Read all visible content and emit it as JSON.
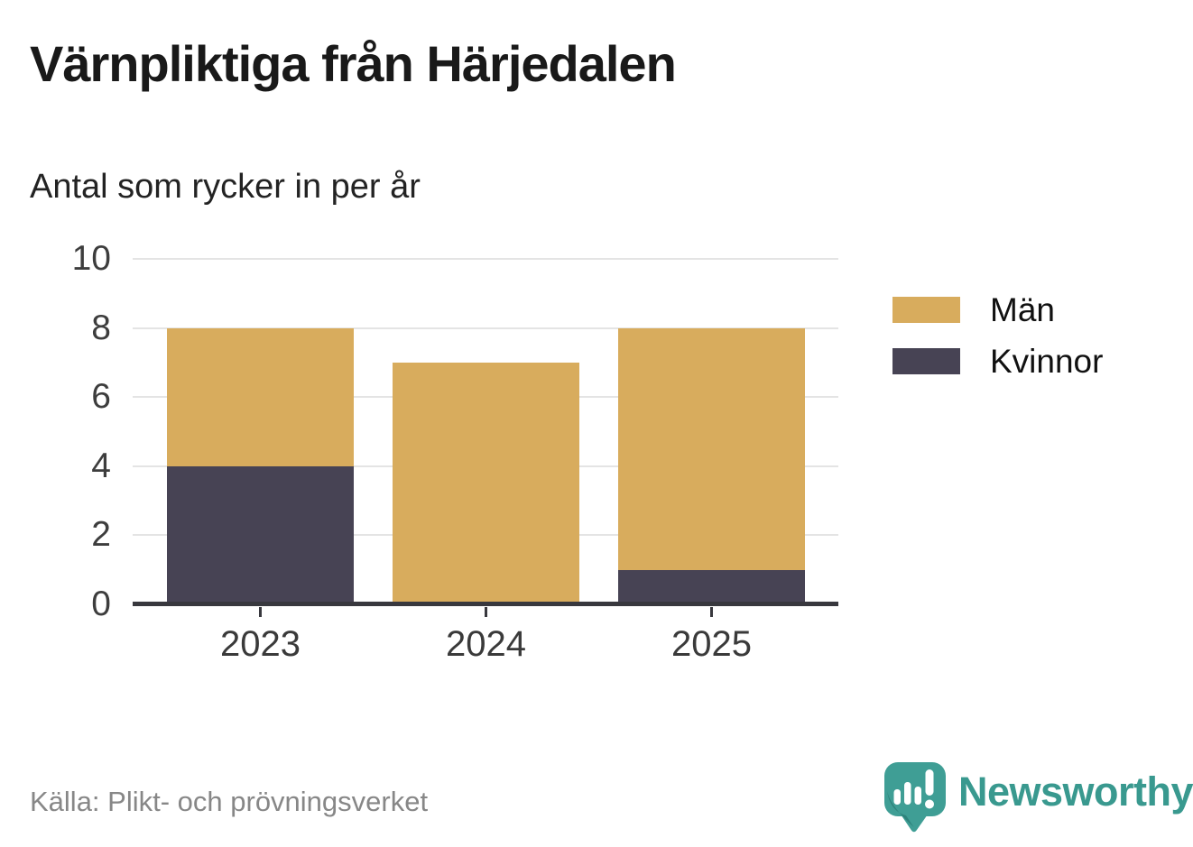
{
  "header": {
    "title": "Värnpliktiga från Härjedalen",
    "subtitle": "Antal som rycker in per år"
  },
  "chart_data": {
    "type": "bar",
    "stacked": true,
    "title": "Värnpliktiga från Härjedalen",
    "subtitle": "Antal som rycker in per år",
    "categories": [
      "2023",
      "2024",
      "2025"
    ],
    "series": [
      {
        "name": "Män",
        "color": "#d8ac5d",
        "values": [
          4,
          7,
          7
        ]
      },
      {
        "name": "Kvinnor",
        "color": "#474354",
        "values": [
          4,
          0,
          1
        ]
      }
    ],
    "totals": [
      8,
      7,
      8
    ],
    "xlabel": "",
    "ylabel": "",
    "ylim": [
      0,
      10
    ],
    "yticks": [
      0,
      2,
      4,
      6,
      8,
      10
    ],
    "grid": true,
    "legend_position": "right"
  },
  "legend": {
    "items": [
      {
        "label": "Män",
        "color": "#d8ac5d"
      },
      {
        "label": "Kvinnor",
        "color": "#474354"
      }
    ]
  },
  "footer": {
    "source": "Källa: Plikt- och prövningsverket",
    "brand": "Newsworthy"
  },
  "colors": {
    "men": "#d8ac5d",
    "women": "#474354",
    "brand_teal": "#39998f",
    "brand_teal_dark": "#2e837c"
  }
}
